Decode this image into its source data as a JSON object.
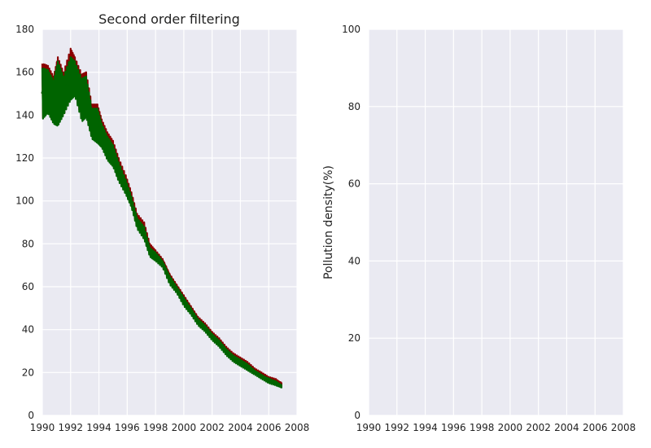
{
  "chart_data": [
    {
      "type": "line",
      "title": "Second order filtering",
      "xlabel": "",
      "ylabel": "",
      "xlim": [
        1990,
        2008
      ],
      "ylim": [
        0,
        180
      ],
      "xticks": [
        "1990",
        "1992",
        "1994",
        "1996",
        "1998",
        "2000",
        "2002",
        "2004",
        "2006",
        "2008"
      ],
      "yticks": [
        "0",
        "20",
        "40",
        "60",
        "80",
        "100",
        "120",
        "140",
        "160",
        "180"
      ],
      "grid": true,
      "series": [
        {
          "color": "#8b0000",
          "x": [
            1990.0,
            1990.4,
            1990.8,
            1991.1,
            1991.5,
            1992.0,
            1992.3,
            1992.8,
            1993.1,
            1993.5,
            1993.9,
            1994.2,
            1994.6,
            1995.0,
            1995.4,
            1995.9,
            1996.3,
            1996.7,
            1997.2,
            1997.6,
            1998.0,
            1998.5,
            1999.0,
            1999.5,
            2000.0,
            2000.5,
            2001.0,
            2001.5,
            2002.0,
            2002.5,
            2003.0,
            2003.5,
            2004.0,
            2004.5,
            2005.0,
            2005.5,
            2006.0,
            2006.5,
            2006.9
          ],
          "y": [
            150,
            158,
            148,
            165,
            150,
            158,
            165,
            145,
            155,
            140,
            138,
            133,
            128,
            122,
            115,
            108,
            100,
            92,
            86,
            78,
            76,
            72,
            65,
            60,
            55,
            50,
            45,
            42,
            38,
            35,
            31,
            28,
            26,
            24,
            21,
            19,
            17,
            16,
            15
          ],
          "max": [
            164,
            163,
            158,
            167,
            160,
            171,
            167,
            159,
            160,
            145,
            145,
            138,
            132,
            128,
            120,
            112,
            104,
            94,
            90,
            80,
            77,
            73,
            66,
            61,
            56,
            51,
            46,
            43,
            39,
            36,
            32,
            29,
            27,
            25,
            22,
            20,
            18,
            17,
            15
          ],
          "min": [
            138,
            142,
            136,
            140,
            140,
            148,
            150,
            138,
            140,
            130,
            128,
            126,
            120,
            117,
            110,
            104,
            98,
            88,
            83,
            75,
            73,
            70,
            62,
            58,
            52,
            48,
            43,
            40,
            36,
            33,
            29,
            26,
            24,
            22,
            20,
            18,
            16,
            15,
            14
          ]
        },
        {
          "color": "#006400",
          "x": [
            1990.0,
            1990.4,
            1990.8,
            1991.1,
            1991.5,
            1992.0,
            1992.3,
            1992.8,
            1993.1,
            1993.5,
            1993.9,
            1994.2,
            1994.6,
            1995.0,
            1995.4,
            1995.9,
            1996.3,
            1996.7,
            1997.2,
            1997.6,
            1998.0,
            1998.5,
            1999.0,
            1999.5,
            2000.0,
            2000.5,
            2001.0,
            2001.5,
            2002.0,
            2002.5,
            2003.0,
            2003.5,
            2004.0,
            2004.5,
            2005.0,
            2005.5,
            2006.0,
            2006.5,
            2006.9
          ],
          "y": [
            150,
            157,
            148,
            163,
            150,
            157,
            163,
            145,
            154,
            140,
            137,
            132,
            127,
            121,
            114,
            107,
            99,
            91,
            85,
            77,
            75,
            71,
            64,
            59,
            54,
            49,
            44,
            41,
            37,
            34,
            30,
            27,
            25,
            23,
            20,
            18,
            17,
            15,
            14
          ],
          "max": [
            162,
            161,
            156,
            165,
            158,
            167,
            165,
            157,
            158,
            143,
            143,
            136,
            130,
            126,
            118,
            110,
            102,
            92,
            88,
            78,
            76,
            72,
            65,
            60,
            55,
            50,
            45,
            42,
            38,
            35,
            31,
            28,
            26,
            24,
            21,
            19,
            17,
            16,
            14
          ],
          "min": [
            138,
            141,
            136,
            135,
            140,
            147,
            149,
            137,
            139,
            129,
            127,
            125,
            119,
            116,
            109,
            103,
            97,
            87,
            82,
            74,
            72,
            69,
            61,
            57,
            51,
            47,
            42,
            39,
            35,
            32,
            28,
            25,
            23,
            21,
            19,
            17,
            15,
            14,
            13
          ]
        }
      ]
    },
    {
      "type": "line",
      "title": "",
      "xlabel": "",
      "ylabel": "Pollution density(%)",
      "xlim": [
        1990,
        2008
      ],
      "ylim": [
        0,
        100
      ],
      "xticks": [
        "1990",
        "1992",
        "1994",
        "1996",
        "1998",
        "2000",
        "2002",
        "2004",
        "2006",
        "2008"
      ],
      "yticks": [
        "0",
        "20",
        "40",
        "60",
        "80",
        "100"
      ],
      "grid": true,
      "series": []
    }
  ],
  "colors": {
    "plot_background": "#eaeaf2",
    "grid": "#ffffff"
  }
}
